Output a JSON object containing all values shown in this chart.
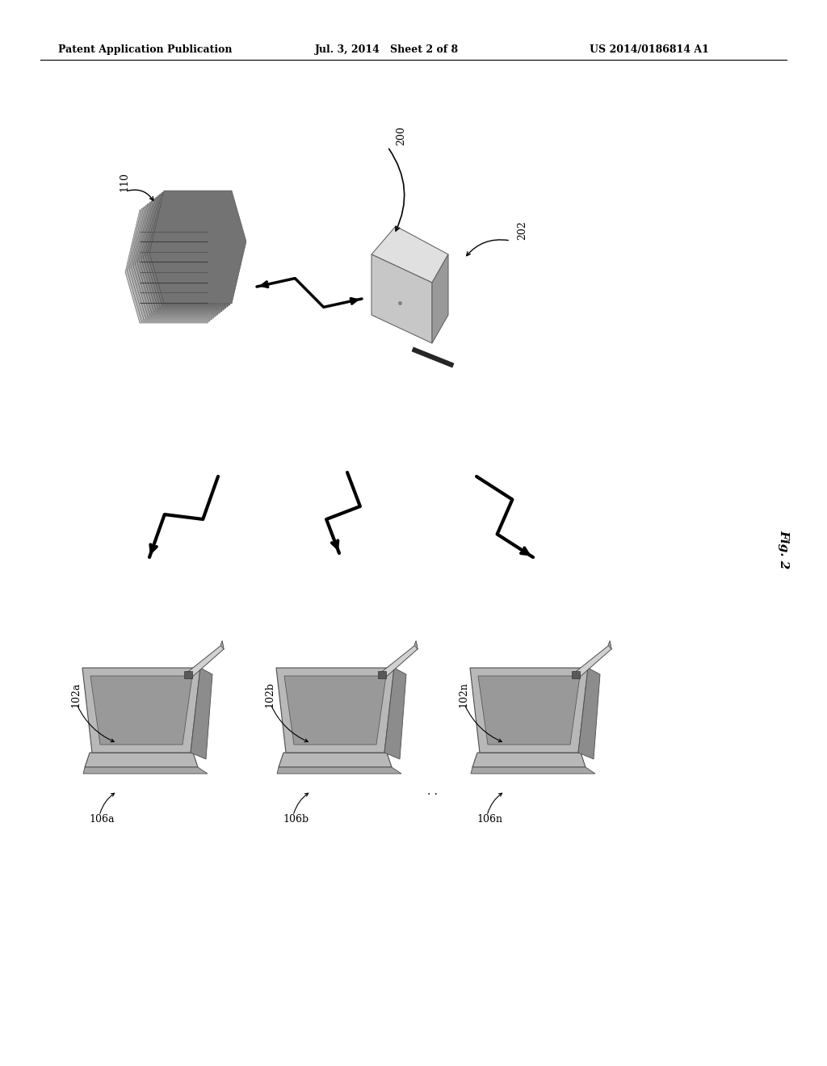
{
  "bg_color": "#ffffff",
  "header_left": "Patent Application Publication",
  "header_mid": "Jul. 3, 2014   Sheet 2 of 8",
  "header_right": "US 2014/0186814 A1",
  "fig_label": "Fig. 2",
  "label_200": "200",
  "label_202": "202",
  "label_110": "110",
  "label_102a": "102a",
  "label_102b": "102b",
  "label_102n": "102n",
  "label_106a": "106a",
  "label_106b": "106b",
  "label_106n": "106n",
  "dots_label": ".",
  "text_color": "#000000",
  "header_font_size": 9,
  "label_font_size": 9,
  "fig_label_font_size": 11
}
